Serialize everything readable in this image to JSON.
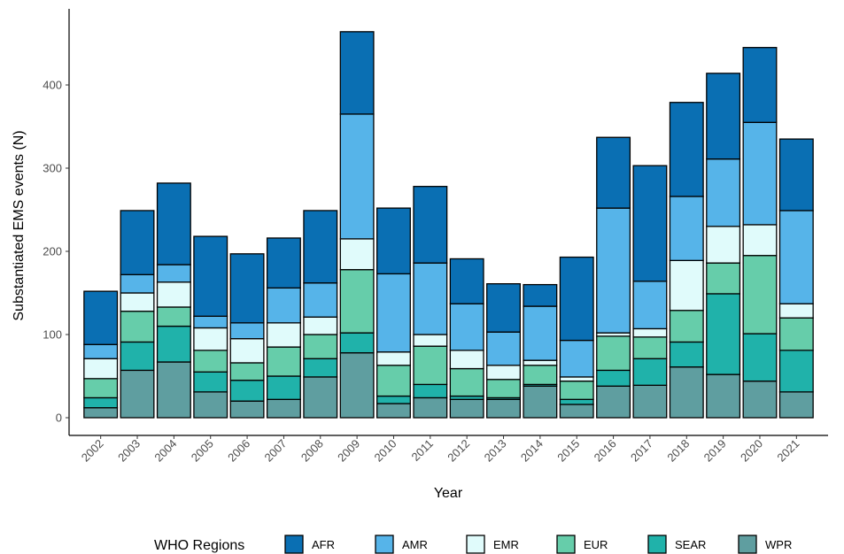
{
  "chart_data": {
    "type": "stacked-bar",
    "x_label": "Year",
    "y_label": "Substantiated EMS events (N)",
    "legend_title": "WHO Regions",
    "categories": [
      "2002",
      "2003",
      "2004",
      "2005",
      "2006",
      "2007",
      "2008",
      "2009",
      "2010",
      "2011",
      "2012",
      "2013",
      "2014",
      "2015",
      "2016",
      "2017",
      "2018",
      "2019",
      "2020",
      "2021"
    ],
    "series": [
      {
        "name": "AFR",
        "color": "#0a6fb3",
        "values": [
          64,
          77,
          98,
          96,
          83,
          60,
          87,
          99,
          79,
          92,
          54,
          58,
          26,
          100,
          85,
          139,
          113,
          103,
          90,
          86
        ]
      },
      {
        "name": "AMR",
        "color": "#56b4e9",
        "values": [
          17,
          22,
          21,
          14,
          19,
          42,
          41,
          150,
          94,
          86,
          56,
          40,
          65,
          44,
          150,
          57,
          77,
          81,
          123,
          112
        ]
      },
      {
        "name": "EMR",
        "color": "#e0fbfb",
        "values": [
          24,
          22,
          30,
          27,
          29,
          29,
          21,
          37,
          16,
          14,
          22,
          17,
          6,
          5,
          4,
          10,
          60,
          44,
          37,
          17
        ]
      },
      {
        "name": "EUR",
        "color": "#66cdaa",
        "values": [
          23,
          37,
          23,
          26,
          21,
          35,
          29,
          76,
          37,
          46,
          33,
          22,
          23,
          22,
          41,
          26,
          38,
          37,
          94,
          39
        ]
      },
      {
        "name": "SEAR",
        "color": "#20b2aa",
        "values": [
          12,
          34,
          43,
          24,
          25,
          28,
          22,
          24,
          9,
          16,
          4,
          2,
          2,
          6,
          19,
          32,
          30,
          97,
          57,
          50
        ]
      },
      {
        "name": "WPR",
        "color": "#5f9ea0",
        "values": [
          12,
          57,
          67,
          31,
          20,
          22,
          49,
          78,
          17,
          24,
          22,
          22,
          38,
          16,
          38,
          39,
          61,
          52,
          44,
          31
        ]
      }
    ],
    "ylim": [
      0,
      490
    ],
    "yticks": [
      0,
      100,
      200,
      300,
      400
    ],
    "legend": "bottom"
  }
}
